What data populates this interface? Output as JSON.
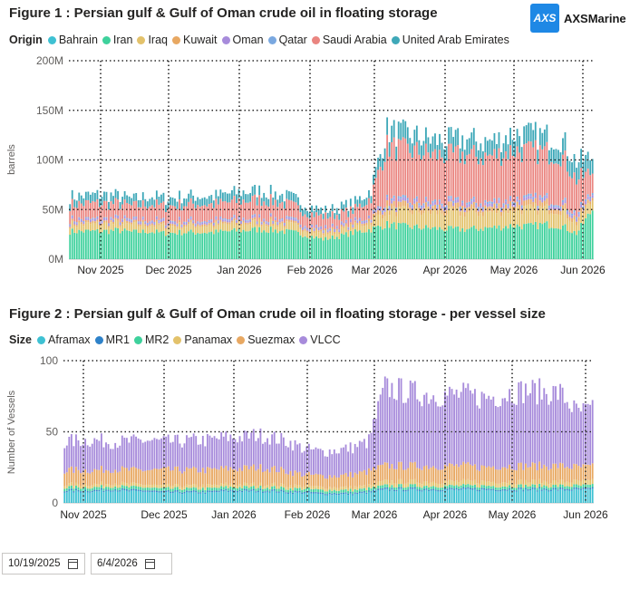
{
  "logo": {
    "mark": "AXS",
    "text": "AXSMarine"
  },
  "filters": {
    "start_date": "10/19/2025",
    "end_date": "6/4/2026"
  },
  "chart_data": [
    {
      "type": "bar",
      "stacked": true,
      "title": "Figure 1 : Persian gulf & Gulf of Oman crude oil in floating storage",
      "legend_title": "Origin",
      "ylabel": "barrels",
      "xlabel": "",
      "ylim": [
        0,
        200
      ],
      "yticks": [
        "0M",
        "50M",
        "100M",
        "150M",
        "200M"
      ],
      "xticks": [
        "Nov 2025",
        "Dec 2025",
        "Jan 2026",
        "Feb 2026",
        "Mar 2026",
        "Apr 2026",
        "May 2026",
        "Jun 2026"
      ],
      "grid": "dotted",
      "legend_position": "top-left",
      "weekly_x": [
        "10/19",
        "10/26",
        "11/2",
        "11/9",
        "11/16",
        "11/23",
        "11/30",
        "12/7",
        "12/14",
        "12/21",
        "12/28",
        "1/4",
        "1/11",
        "1/18",
        "1/25",
        "2/1",
        "2/8",
        "2/15",
        "2/22",
        "3/1",
        "3/8",
        "3/15",
        "3/22",
        "3/29",
        "4/5",
        "4/12",
        "4/19",
        "4/26",
        "5/3",
        "5/10",
        "5/17",
        "5/24",
        "5/31",
        "6/4"
      ],
      "series": [
        {
          "name": "Bahrain",
          "color": "#3ec1d3",
          "values": [
            0,
            0,
            0,
            0,
            0,
            0,
            0,
            0,
            0,
            0,
            0,
            0,
            0,
            0,
            0,
            0,
            0,
            0,
            0,
            0,
            0,
            0,
            0,
            0,
            0,
            0,
            0,
            0,
            0,
            0,
            0,
            0,
            0,
            0
          ]
        },
        {
          "name": "Iran",
          "color": "#3ed19c",
          "values": [
            28,
            28,
            28,
            29,
            27,
            28,
            26,
            27,
            27,
            27,
            28,
            29,
            30,
            29,
            27,
            24,
            20,
            23,
            27,
            30,
            35,
            33,
            32,
            31,
            30,
            30,
            31,
            32,
            34,
            33,
            35,
            34,
            26,
            50
          ]
        },
        {
          "name": "Iraq",
          "color": "#e3c26b",
          "values": [
            7,
            7,
            7,
            7,
            7,
            7,
            7,
            7,
            7,
            7,
            7,
            7,
            7,
            7,
            7,
            6,
            6,
            6,
            6,
            8,
            14,
            15,
            16,
            16,
            17,
            17,
            16,
            16,
            17,
            17,
            16,
            16,
            10,
            10
          ]
        },
        {
          "name": "Kuwait",
          "color": "#e8a862",
          "values": [
            2,
            2,
            2,
            2,
            2,
            2,
            2,
            2,
            2,
            2,
            2,
            2,
            2,
            2,
            2,
            2,
            2,
            2,
            2,
            3,
            5,
            5,
            5,
            5,
            5,
            5,
            5,
            5,
            5,
            5,
            5,
            5,
            4,
            3
          ]
        },
        {
          "name": "Oman",
          "color": "#a78bdb",
          "values": [
            2,
            2,
            2,
            2,
            2,
            2,
            2,
            2,
            2,
            2,
            2,
            2,
            2,
            2,
            2,
            2,
            2,
            2,
            2,
            2,
            3,
            3,
            3,
            3,
            3,
            3,
            3,
            3,
            3,
            3,
            3,
            3,
            3,
            3
          ]
        },
        {
          "name": "Qatar",
          "color": "#7aa8e0",
          "values": [
            1,
            1,
            1,
            1,
            1,
            1,
            1,
            1,
            1,
            1,
            1,
            1,
            1,
            1,
            1,
            1,
            1,
            1,
            1,
            1,
            2,
            2,
            2,
            2,
            2,
            2,
            2,
            2,
            2,
            2,
            2,
            2,
            2,
            2
          ]
        },
        {
          "name": "Saudi Arabia",
          "color": "#ea8580",
          "values": [
            15,
            16,
            16,
            15,
            14,
            16,
            15,
            16,
            17,
            16,
            17,
            18,
            18,
            17,
            15,
            12,
            12,
            11,
            12,
            18,
            55,
            52,
            50,
            48,
            47,
            48,
            46,
            47,
            49,
            48,
            47,
            46,
            35,
            20
          ]
        },
        {
          "name": "United Arab Emirates",
          "color": "#3ea8b8",
          "values": [
            8,
            8,
            9,
            8,
            7,
            8,
            8,
            8,
            8,
            8,
            9,
            9,
            9,
            8,
            8,
            7,
            6,
            7,
            7,
            8,
            16,
            16,
            15,
            15,
            15,
            16,
            15,
            15,
            17,
            17,
            16,
            16,
            18,
            15
          ]
        }
      ]
    },
    {
      "type": "bar",
      "stacked": true,
      "title": "Figure 2 : Persian gulf & Gulf of Oman crude oil in floating storage - per vessel size",
      "legend_title": "Size",
      "ylabel": "Number of Vessels",
      "xlabel": "",
      "ylim": [
        0,
        100
      ],
      "yticks": [
        "0",
        "50",
        "100"
      ],
      "xticks": [
        "Nov 2025",
        "Dec 2025",
        "Jan 2026",
        "Feb 2026",
        "Mar 2026",
        "Apr 2026",
        "May 2026",
        "Jun 2026"
      ],
      "grid": "dotted",
      "legend_position": "top-left",
      "weekly_x": [
        "10/19",
        "10/26",
        "11/2",
        "11/9",
        "11/16",
        "11/23",
        "11/30",
        "12/7",
        "12/14",
        "12/21",
        "12/28",
        "1/4",
        "1/11",
        "1/18",
        "1/25",
        "2/1",
        "2/8",
        "2/15",
        "2/22",
        "3/1",
        "3/8",
        "3/15",
        "3/22",
        "3/29",
        "4/5",
        "4/12",
        "4/19",
        "4/26",
        "5/3",
        "5/10",
        "5/17",
        "5/24",
        "5/31",
        "6/4"
      ],
      "series": [
        {
          "name": "Aframax",
          "color": "#3ec1d3",
          "values": [
            8,
            8,
            8,
            9,
            8,
            8,
            7,
            7,
            7,
            7,
            8,
            8,
            8,
            8,
            7,
            7,
            6,
            6,
            6,
            7,
            9,
            9,
            9,
            9,
            9,
            9,
            9,
            9,
            9,
            9,
            9,
            9,
            9,
            9
          ]
        },
        {
          "name": "MR1",
          "color": "#2e82c9",
          "values": [
            1,
            1,
            1,
            1,
            1,
            1,
            1,
            1,
            1,
            1,
            1,
            1,
            1,
            1,
            1,
            1,
            1,
            1,
            1,
            1,
            1,
            1,
            1,
            1,
            1,
            1,
            1,
            1,
            1,
            1,
            1,
            1,
            1,
            1
          ]
        },
        {
          "name": "MR2",
          "color": "#3ed19c",
          "values": [
            2,
            2,
            2,
            2,
            2,
            2,
            2,
            2,
            2,
            2,
            2,
            2,
            2,
            2,
            2,
            2,
            2,
            2,
            2,
            2,
            2,
            2,
            2,
            2,
            2,
            2,
            2,
            2,
            2,
            2,
            2,
            2,
            2,
            2
          ]
        },
        {
          "name": "Panamax",
          "color": "#e3c26b",
          "values": [
            2,
            2,
            2,
            2,
            2,
            2,
            2,
            2,
            2,
            2,
            2,
            2,
            2,
            2,
            2,
            2,
            2,
            2,
            2,
            2,
            3,
            3,
            3,
            3,
            3,
            3,
            3,
            3,
            3,
            3,
            3,
            3,
            3,
            3
          ]
        },
        {
          "name": "Suezmax",
          "color": "#e8a862",
          "values": [
            10,
            10,
            10,
            10,
            10,
            10,
            11,
            11,
            11,
            11,
            11,
            11,
            12,
            11,
            10,
            8,
            8,
            8,
            9,
            10,
            11,
            11,
            11,
            11,
            11,
            11,
            10,
            11,
            11,
            11,
            11,
            11,
            10,
            10
          ]
        },
        {
          "name": "VLCC",
          "color": "#a78bdb",
          "values": [
            20,
            21,
            21,
            19,
            20,
            21,
            20,
            20,
            21,
            21,
            22,
            22,
            23,
            22,
            21,
            18,
            17,
            18,
            19,
            21,
            55,
            53,
            51,
            50,
            50,
            50,
            49,
            49,
            52,
            53,
            52,
            51,
            39,
            40
          ]
        }
      ]
    }
  ]
}
